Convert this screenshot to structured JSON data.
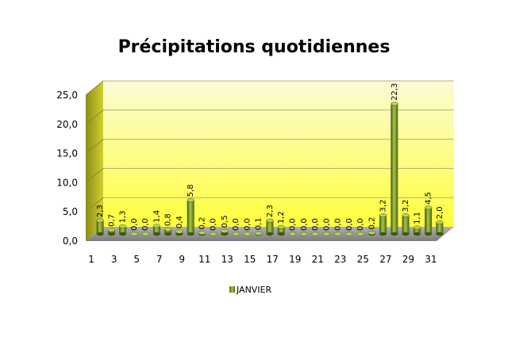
{
  "chart_data": {
    "type": "bar",
    "title": "Précipitations quotidiennes",
    "categories": [
      "1",
      "2",
      "3",
      "4",
      "5",
      "6",
      "7",
      "8",
      "9",
      "10",
      "11",
      "12",
      "13",
      "14",
      "15",
      "16",
      "17",
      "18",
      "19",
      "20",
      "21",
      "22",
      "23",
      "24",
      "25",
      "26",
      "27",
      "28",
      "29",
      "30",
      "31"
    ],
    "x_tick_labels": [
      "1",
      "3",
      "5",
      "7",
      "9",
      "11",
      "13",
      "15",
      "17",
      "19",
      "21",
      "23",
      "25",
      "27",
      "29",
      "31"
    ],
    "series": [
      {
        "name": "JANVIER",
        "values": [
          2.3,
          0.7,
          1.3,
          0.0,
          0.0,
          1.4,
          0.8,
          0.4,
          5.8,
          0.2,
          0.0,
          0.5,
          0.0,
          0.0,
          0.1,
          2.3,
          1.2,
          0.0,
          0.0,
          0.0,
          0.0,
          0.0,
          0.0,
          0.0,
          0.2,
          3.2,
          22.3,
          3.2,
          1.1,
          4.5,
          2.0
        ],
        "labels": [
          "2,3",
          "0,7",
          "1,3",
          "0,0",
          "0,0",
          "1,4",
          "0,8",
          "0,4",
          "5,8",
          "0,2",
          "0,0",
          "0,5",
          "0,0",
          "0,0",
          "0,1",
          "2,3",
          "1,2",
          "0,0",
          "0,0",
          "0,0",
          "0,0",
          "0,0",
          "0,0",
          "0,0",
          "0,2",
          "3,2",
          "22,3",
          "3,2",
          "1,1",
          "4,5",
          "2,0"
        ],
        "color": "#6e8c1a"
      }
    ],
    "y_ticks": [
      0,
      5,
      10,
      15,
      20,
      25
    ],
    "y_tick_labels": [
      "0,0",
      "5,0",
      "10,0",
      "15,0",
      "20,0",
      "25,0"
    ],
    "ylim": [
      0,
      25
    ],
    "grid": true,
    "legend": "bottom",
    "colors": {
      "wall_top": "#fbfbd6",
      "wall_bottom": "#ffff3c",
      "side_wall": "#b8b820",
      "floor": "#9c9c9c",
      "bar_dark": "#4a6410",
      "bar_mid": "#6e8c1a",
      "bar_light": "#b7d15a"
    }
  }
}
